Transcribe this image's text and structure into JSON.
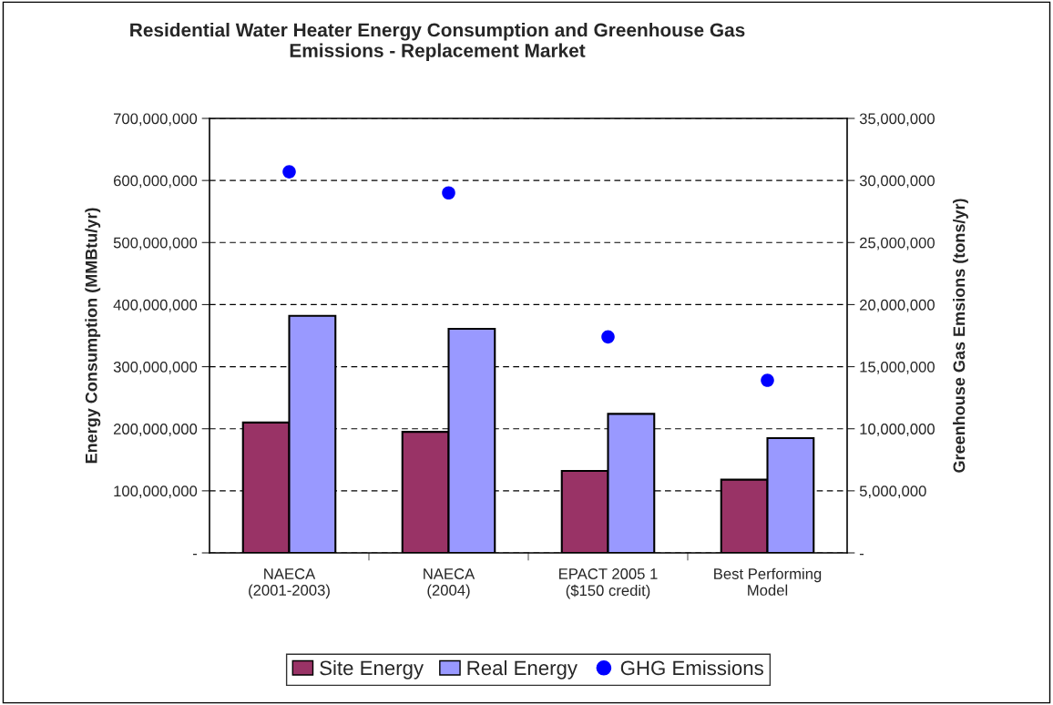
{
  "chart_data": {
    "type": "bar",
    "title": "Residential Water Heater Energy Consumption and Greenhouse Gas\nEmissions - Replacement Market",
    "categories": [
      "NAECA\n(2001-2003)",
      "NAECA\n(2004)",
      "EPACT 2005 1\n($150 credit)",
      "Best Performing\nModel"
    ],
    "ylabel": "Energy Consumption (MMBtu/yr)",
    "y2label": "Greenhouse Gas Emsions (tons/yr)",
    "series": [
      {
        "name": "Site Energy",
        "color": "#993366",
        "values": [
          210000000,
          195000000,
          132000000,
          118000000
        ]
      },
      {
        "name": "Real Energy",
        "color": "#9999ff",
        "values": [
          382000000,
          361000000,
          224000000,
          185000000
        ]
      },
      {
        "name": "GHG Emissions",
        "type": "scatter",
        "axis": "y2",
        "marker": "circle",
        "color": "#0000ff",
        "values": [
          30700000,
          29000000,
          17400000,
          13900000
        ]
      }
    ],
    "ylim": [
      0,
      700000000
    ],
    "yticks": [
      {
        "value": 0,
        "label": "-"
      },
      {
        "value": 100000000,
        "label": "100,000,000"
      },
      {
        "value": 200000000,
        "label": "200,000,000"
      },
      {
        "value": 300000000,
        "label": "300,000,000"
      },
      {
        "value": 400000000,
        "label": "400,000,000"
      },
      {
        "value": 500000000,
        "label": "500,000,000"
      },
      {
        "value": 600000000,
        "label": "600,000,000"
      },
      {
        "value": 700000000,
        "label": "700,000,000"
      }
    ],
    "y2lim": [
      0,
      35000000
    ],
    "y2ticks": [
      {
        "value": 0,
        "label": "-"
      },
      {
        "value": 5000000,
        "label": "5,000,000"
      },
      {
        "value": 10000000,
        "label": "10,000,000"
      },
      {
        "value": 15000000,
        "label": "15,000,000"
      },
      {
        "value": 20000000,
        "label": "20,000,000"
      },
      {
        "value": 25000000,
        "label": "25,000,000"
      },
      {
        "value": 30000000,
        "label": "30,000,000"
      },
      {
        "value": 35000000,
        "label": "35,000,000"
      }
    ],
    "grid": "y",
    "legend": "bottom"
  }
}
